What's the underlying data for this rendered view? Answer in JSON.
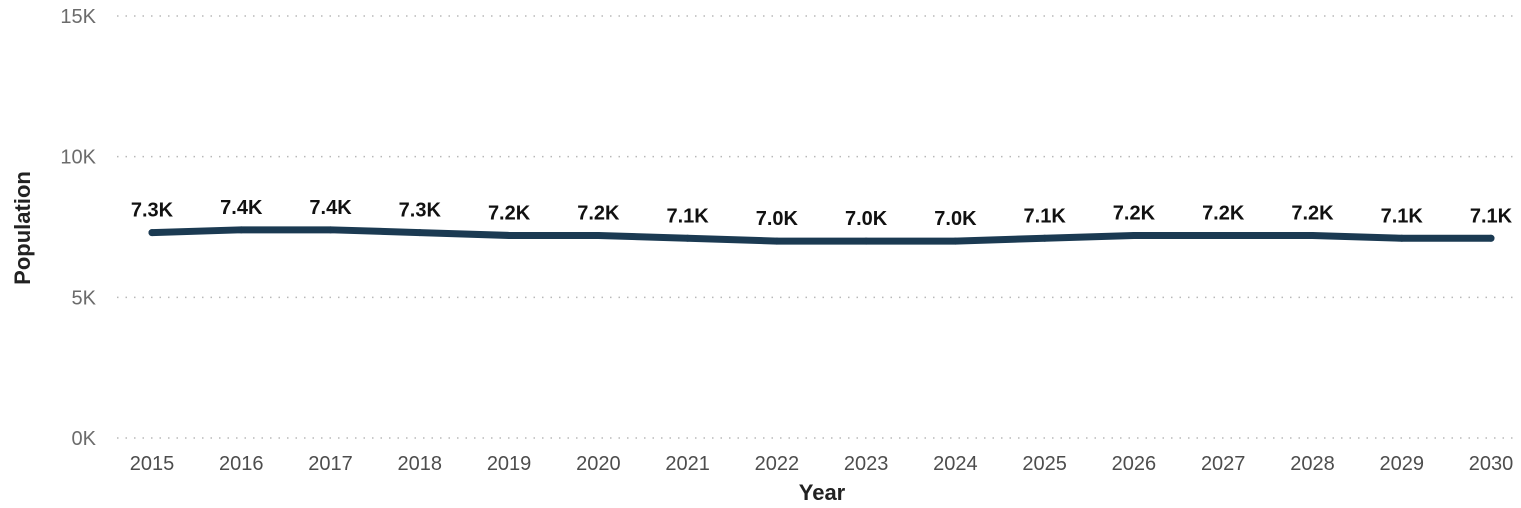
{
  "chart_data": {
    "type": "line",
    "title": "",
    "xlabel": "Year",
    "ylabel": "Population",
    "x": [
      "2015",
      "2016",
      "2017",
      "2018",
      "2019",
      "2020",
      "2021",
      "2022",
      "2023",
      "2024",
      "2025",
      "2026",
      "2027",
      "2028",
      "2029",
      "2030"
    ],
    "series": [
      {
        "values": [
          7300,
          7400,
          7400,
          7300,
          7200,
          7200,
          7100,
          7000,
          7000,
          7000,
          7100,
          7200,
          7200,
          7200,
          7100,
          7100
        ],
        "data_labels": [
          "7.3K",
          "7.4K",
          "7.4K",
          "7.3K",
          "7.2K",
          "7.2K",
          "7.1K",
          "7.0K",
          "7.0K",
          "7.0K",
          "7.1K",
          "7.2K",
          "7.2K",
          "7.2K",
          "7.1K",
          "7.1K"
        ],
        "color": "#1b3a52"
      }
    ],
    "ylim": [
      0,
      15000
    ],
    "y_ticks": [
      0,
      5000,
      10000,
      15000
    ],
    "y_tick_labels": [
      "0K",
      "5K",
      "10K",
      "15K"
    ],
    "grid": true,
    "legend": "none"
  }
}
